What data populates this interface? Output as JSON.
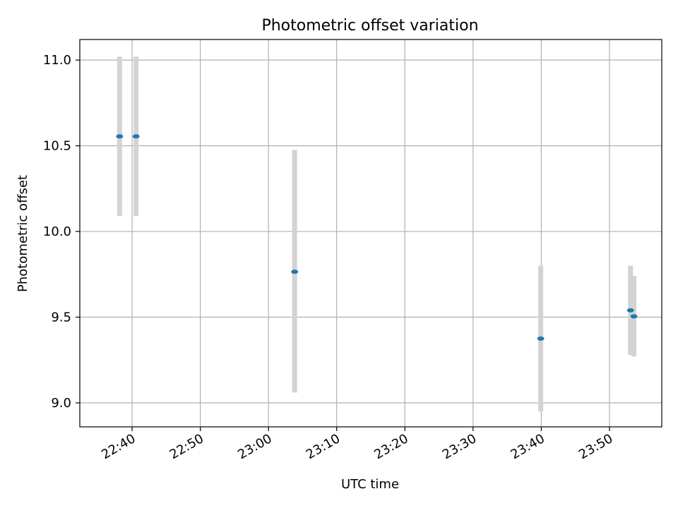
{
  "chart_data": {
    "type": "scatter",
    "title": "Photometric offset variation",
    "xlabel": "UTC time",
    "ylabel": "Photometric offset",
    "x_is_time": true,
    "xlim": [
      "22:32:20",
      "23:57:40"
    ],
    "ylim": [
      8.86,
      11.12
    ],
    "x_ticks": [
      "22:40",
      "22:50",
      "23:00",
      "23:10",
      "23:20",
      "23:30",
      "23:40",
      "23:50"
    ],
    "y_ticks": [
      9.0,
      9.5,
      10.0,
      10.5,
      11.0
    ],
    "y_tick_labels": [
      "9.0",
      "9.5",
      "10.0",
      "10.5",
      "11.0"
    ],
    "grid": true,
    "legend": "none",
    "series": [
      {
        "marker_color": "#1f77b4",
        "errorbar_color": "#d3d3d3",
        "points": [
          {
            "x": "22:38:10",
            "y": 10.555,
            "low": 10.09,
            "high": 11.02
          },
          {
            "x": "22:40:35",
            "y": 10.555,
            "low": 10.09,
            "high": 11.02
          },
          {
            "x": "23:03:50",
            "y": 9.765,
            "low": 9.06,
            "high": 10.475
          },
          {
            "x": "23:39:55",
            "y": 9.375,
            "low": 8.95,
            "high": 9.8
          },
          {
            "x": "23:53:05",
            "y": 9.54,
            "low": 9.28,
            "high": 9.8
          },
          {
            "x": "23:53:35",
            "y": 9.505,
            "low": 9.27,
            "high": 9.74
          }
        ]
      }
    ]
  }
}
